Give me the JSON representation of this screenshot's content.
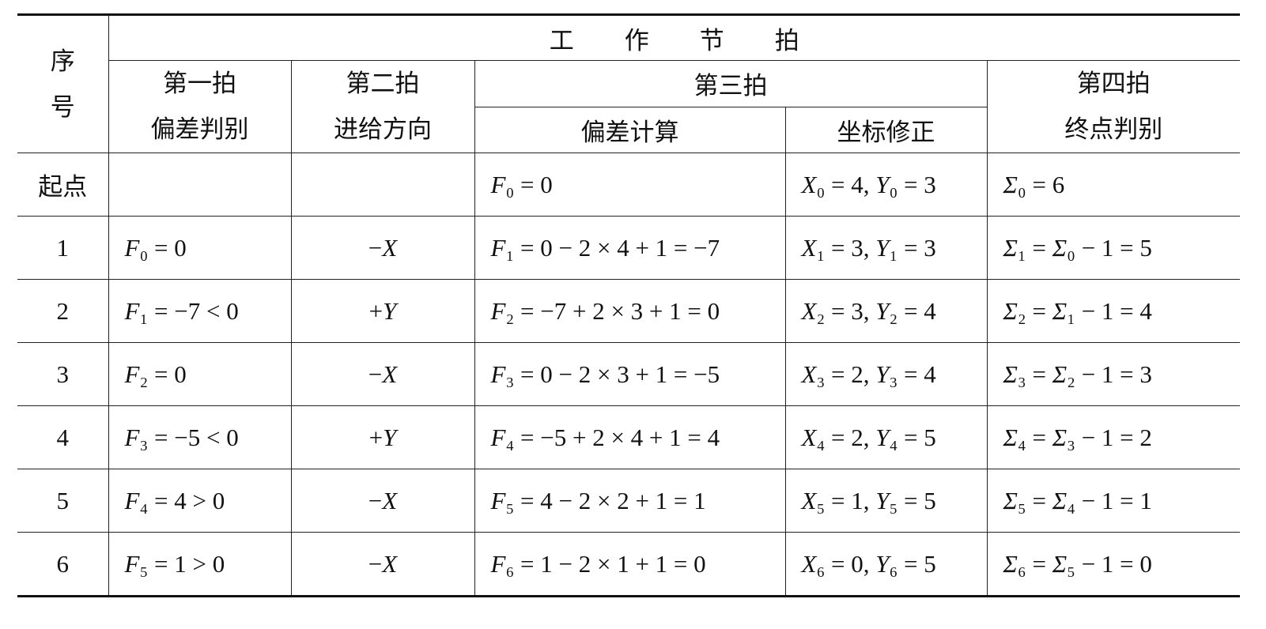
{
  "header": {
    "index": "序号",
    "title": "工作节拍",
    "beat1": {
      "name": "第一拍",
      "task": "偏差判别"
    },
    "beat2": {
      "name": "第二拍",
      "task": "进给方向"
    },
    "beat3": {
      "name": "第三拍",
      "tasks": [
        "偏差计算",
        "坐标修正"
      ]
    },
    "beat4": {
      "name": "第四拍",
      "task": "终点判别"
    }
  },
  "table": {
    "rows": [
      [
        "起点",
        null,
        null,
        "F₀ = 0",
        "X₀ = 4, Y₀ = 3",
        "Σ₀ = 6"
      ],
      [
        "1",
        "F₀ = 0",
        "−X",
        "F₁ = 0 − 2 × 4 + 1 = −7",
        "X₁ = 3, Y₁ = 3",
        "Σ₁ = Σ₀ − 1 = 5"
      ],
      [
        "2",
        "F₁ = −7 < 0",
        "+Y",
        "F₂ = −7 + 2 × 3 + 1 = 0",
        "X₂ = 3, Y₂ = 4",
        "Σ₂ = Σ₁ − 1 = 4"
      ],
      [
        "3",
        "F₂ = 0",
        "−X",
        "F₃ = 0 − 2 × 3 + 1 = −5",
        "X₃ = 2, Y₃ = 4",
        "Σ₃ = Σ₂ − 1 = 3"
      ],
      [
        "4",
        "F₃ = −5 < 0",
        "+Y",
        "F₄ = −5 + 2 × 4 + 1 = 4",
        "X₄ = 2, Y₄ = 5",
        "Σ₄ = Σ₃ − 1 = 2"
      ],
      [
        "5",
        "F₄ = 4 > 0",
        "−X",
        "F₅ = 4 − 2 × 2 + 1 = 1",
        "X₅ = 1, Y₅ = 5",
        "Σ₅ = Σ₄ − 1 = 1"
      ],
      [
        "6",
        "F₅ = 1 > 0",
        "−X",
        "F₆ = 1 − 2 × 1 + 1 = 0",
        "X₆ = 0, Y₆ = 5",
        "Σ₆ = Σ₅ − 1 = 0"
      ]
    ]
  }
}
